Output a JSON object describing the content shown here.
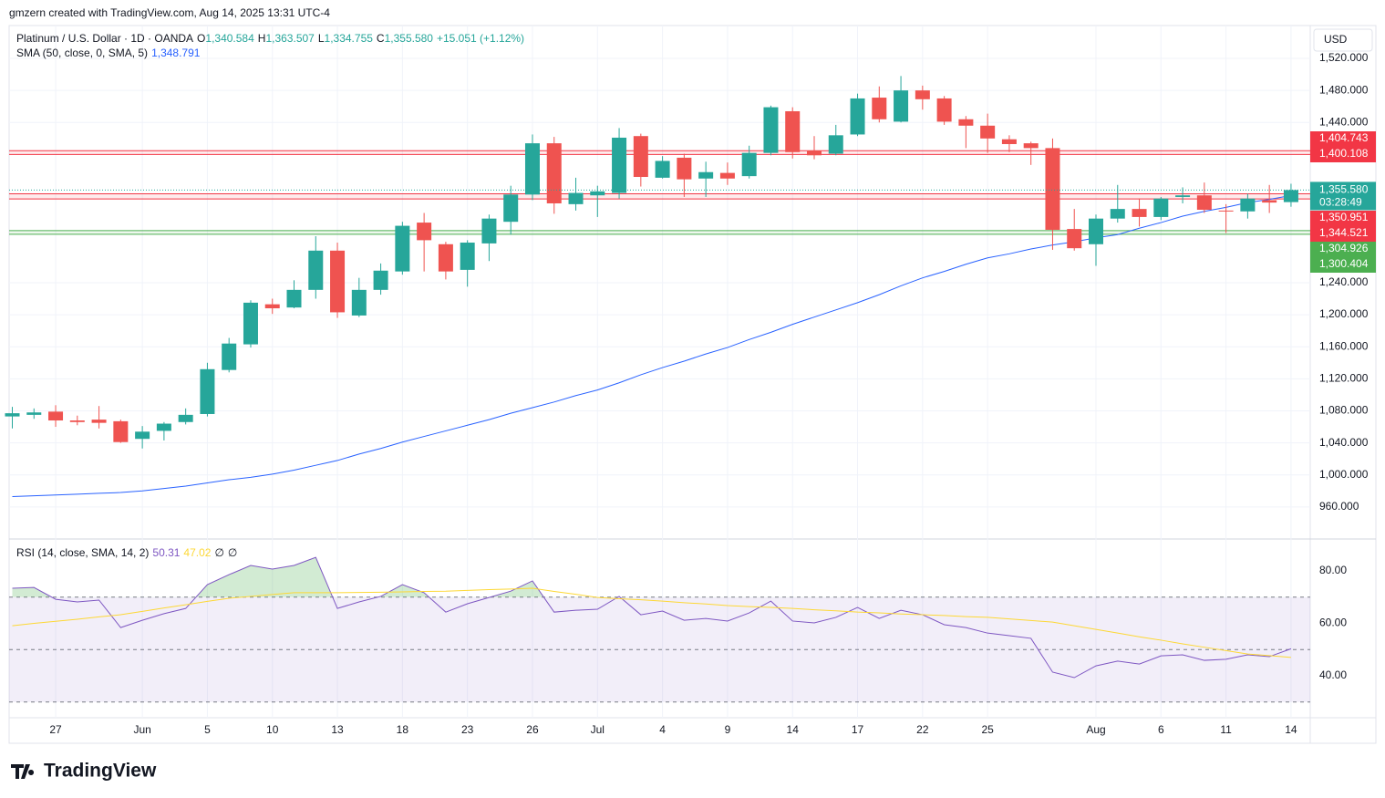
{
  "header": {
    "attribution": "gmzern created with TradingView.com, Aug 14, 2025 13:31 UTC-4"
  },
  "chart_data": [
    {
      "type": "candlestick",
      "title": "Platinum / U.S. Dollar · 1D · OANDA",
      "ohlc_legend": [
        {
          "key": "O",
          "value": "1,340.584"
        },
        {
          "key": "H",
          "value": "1,363.507"
        },
        {
          "key": "L",
          "value": "1,334.755"
        },
        {
          "key": "C",
          "value": "1,355.580"
        }
      ],
      "change": "+15.051 (+1.12%)",
      "categories": [
        null,
        null,
        "27",
        null,
        null,
        null,
        "Jun",
        null,
        null,
        "5",
        null,
        null,
        "10",
        null,
        null,
        "13",
        null,
        null,
        "18",
        null,
        null,
        "23",
        null,
        null,
        "26",
        null,
        null,
        "Jul",
        null,
        null,
        "4",
        null,
        null,
        "9",
        null,
        null,
        "14",
        null,
        null,
        "17",
        null,
        null,
        "22",
        null,
        null,
        "25",
        null,
        null,
        null,
        null,
        "Aug",
        null,
        null,
        "6",
        null,
        null,
        "11",
        null,
        null,
        "14"
      ],
      "open": [
        1073,
        1075,
        1079,
        1068,
        1069,
        1067,
        1045,
        1055,
        1066,
        1076,
        1131,
        1163,
        1213,
        1209,
        1231,
        1280,
        1199,
        1231,
        1254,
        1315,
        1288,
        1256,
        1289,
        1316,
        1350,
        1414,
        1338,
        1349,
        1352,
        1423,
        1371,
        1396,
        1370,
        1377,
        1373,
        1402,
        1454,
        1405,
        1401,
        1425,
        1471,
        1441,
        1480,
        1470,
        1444,
        1436,
        1419,
        1414,
        1408,
        1307,
        1288,
        1320,
        1332,
        1322,
        1347,
        1349,
        1330,
        1329,
        1343,
        1340.584
      ],
      "high": [
        1085,
        1083,
        1087,
        1074,
        1086,
        1069,
        1061,
        1066,
        1083,
        1140,
        1171,
        1218,
        1220,
        1243,
        1298,
        1290,
        1246,
        1264,
        1316,
        1327,
        1291,
        1293,
        1325,
        1361,
        1425,
        1422,
        1371,
        1361,
        1433,
        1426,
        1398,
        1401,
        1391,
        1390,
        1411,
        1461,
        1459,
        1423,
        1437,
        1476,
        1485,
        1498,
        1486,
        1473,
        1448,
        1451,
        1424,
        1416,
        1420,
        1332,
        1325,
        1362,
        1345,
        1347,
        1359,
        1365,
        1338,
        1351,
        1362,
        1363.507
      ],
      "low": [
        1058,
        1070,
        1060,
        1062,
        1058,
        1040,
        1033,
        1043,
        1063,
        1073,
        1128,
        1159,
        1201,
        1208,
        1220,
        1196,
        1197,
        1225,
        1250,
        1254,
        1244,
        1235,
        1267,
        1300,
        1343,
        1326,
        1330,
        1322,
        1345,
        1360,
        1370,
        1347,
        1347,
        1362,
        1370,
        1399,
        1395,
        1394,
        1399,
        1423,
        1440,
        1440,
        1456,
        1437,
        1408,
        1402,
        1403,
        1387,
        1281,
        1280,
        1261,
        1315,
        1310,
        1318,
        1339,
        1327,
        1302,
        1320,
        1327,
        1334.755
      ],
      "close": [
        1077,
        1078,
        1068,
        1066,
        1065,
        1041,
        1054,
        1064,
        1075,
        1132,
        1164,
        1215,
        1208,
        1231,
        1280,
        1203,
        1231,
        1255,
        1311,
        1293,
        1254,
        1290,
        1320,
        1350,
        1414,
        1339,
        1352,
        1354,
        1421,
        1372,
        1392,
        1369,
        1378,
        1370,
        1402,
        1459,
        1403,
        1399,
        1424,
        1470,
        1444,
        1480,
        1469,
        1441,
        1436,
        1420,
        1413,
        1408,
        1306,
        1283,
        1320,
        1332,
        1322,
        1345,
        1349,
        1331,
        1329,
        1345,
        1340,
        1355.58
      ],
      "up_color": "#26a69a",
      "down_color": "#ef5350",
      "overlays": [
        {
          "name": "SMA (50, close, 0, SMA, 5)",
          "value_label": "1,348.791",
          "color": "#2962ff",
          "values": [
            973,
            974,
            975,
            976,
            977,
            978,
            980,
            983,
            986,
            990,
            994,
            997,
            1001,
            1006,
            1012,
            1018,
            1026,
            1033,
            1041,
            1048,
            1055,
            1062,
            1069,
            1077,
            1084,
            1091,
            1099,
            1106,
            1115,
            1125,
            1134,
            1142,
            1151,
            1159,
            1169,
            1178,
            1188,
            1197,
            1206,
            1215,
            1225,
            1236,
            1246,
            1254,
            1263,
            1271,
            1276,
            1282,
            1287,
            1291,
            1296,
            1300,
            1308,
            1315,
            1323,
            1329,
            1334,
            1340,
            1344,
            1348.791
          ]
        }
      ],
      "zones": [
        {
          "top": 1404.743,
          "bottom": 1400.108,
          "labels": [
            "1,404.743",
            "1,400.108"
          ],
          "color": "#f23645"
        },
        {
          "top": 1350.951,
          "bottom": 1344.521,
          "labels": [
            "1,350.951",
            "1,344.521"
          ],
          "color": "#f23645"
        },
        {
          "top": 1304.926,
          "bottom": 1300.404,
          "labels": [
            "1,304.926",
            "1,300.404"
          ],
          "color": "#4caf50"
        }
      ],
      "last_price_label": "1,355.580",
      "countdown": "03:28:49",
      "currency": "USD",
      "ylim": [
        920,
        1561
      ],
      "yticks": [
        {
          "value": 1520,
          "label": "1,520.000"
        },
        {
          "value": 1480,
          "label": "1,480.000"
        },
        {
          "value": 1440,
          "label": "1,440.000"
        },
        {
          "value": 1240,
          "label": "1,240.000"
        },
        {
          "value": 1200,
          "label": "1,200.000"
        },
        {
          "value": 1160,
          "label": "1,160.000"
        },
        {
          "value": 1120,
          "label": "1,120.000"
        },
        {
          "value": 1080,
          "label": "1,080.000"
        },
        {
          "value": 1040,
          "label": "1,040.000"
        },
        {
          "value": 1000,
          "label": "1,000.000"
        },
        {
          "value": 960,
          "label": "960.000"
        }
      ],
      "grid": true
    },
    {
      "type": "line",
      "title": "RSI (14, close, SMA, 14, 2)",
      "empty_values": [
        "∅",
        "∅"
      ],
      "series": [
        {
          "color": "#7e57c2",
          "values": [
            73.4,
            73.7,
            69.2,
            68.2,
            68.9,
            58.4,
            61.2,
            63.7,
            65.7,
            74.8,
            78.6,
            82.1,
            80.7,
            82.1,
            85.2,
            65.7,
            68.2,
            70.3,
            74.8,
            71.7,
            64.3,
            67.5,
            69.9,
            72.3,
            76.2,
            64.3,
            65.0,
            65.4,
            70.3,
            63.3,
            64.7,
            61.2,
            61.9,
            60.9,
            64.0,
            68.5,
            60.9,
            60.2,
            62.3,
            66.1,
            61.9,
            65.0,
            63.3,
            59.5,
            58.4,
            56.3,
            55.3,
            54.3,
            41.4,
            39.3,
            43.8,
            45.6,
            44.5,
            47.6,
            48.0,
            45.9,
            46.3,
            48.0,
            47.3,
            50.31
          ]
        },
        {
          "color": "#fdd835",
          "values": [
            59.1,
            60.0,
            60.8,
            61.6,
            62.5,
            63.3,
            64.6,
            65.9,
            67.1,
            68.4,
            69.6,
            70.3,
            71.0,
            71.7,
            71.7,
            71.7,
            71.8,
            71.9,
            72.0,
            72.2,
            72.3,
            72.6,
            72.9,
            73.1,
            73.4,
            72.2,
            71.1,
            69.9,
            69.4,
            69.0,
            68.5,
            67.9,
            67.4,
            66.8,
            66.4,
            66.1,
            65.7,
            65.2,
            64.8,
            64.3,
            64.0,
            63.6,
            63.3,
            63.0,
            62.6,
            62.3,
            61.7,
            61.1,
            60.5,
            59.1,
            57.7,
            56.3,
            54.9,
            53.6,
            52.2,
            50.9,
            49.6,
            48.3,
            47.7,
            47.02
          ]
        }
      ],
      "bands": [
        70,
        50,
        30
      ],
      "ylim": [
        24,
        92.2
      ],
      "yticks": [
        {
          "value": 80,
          "label": "80.00"
        },
        {
          "value": 60,
          "label": "60.00"
        },
        {
          "value": 40,
          "label": "40.00"
        }
      ]
    }
  ],
  "footer": {
    "logo": "TradingView"
  }
}
